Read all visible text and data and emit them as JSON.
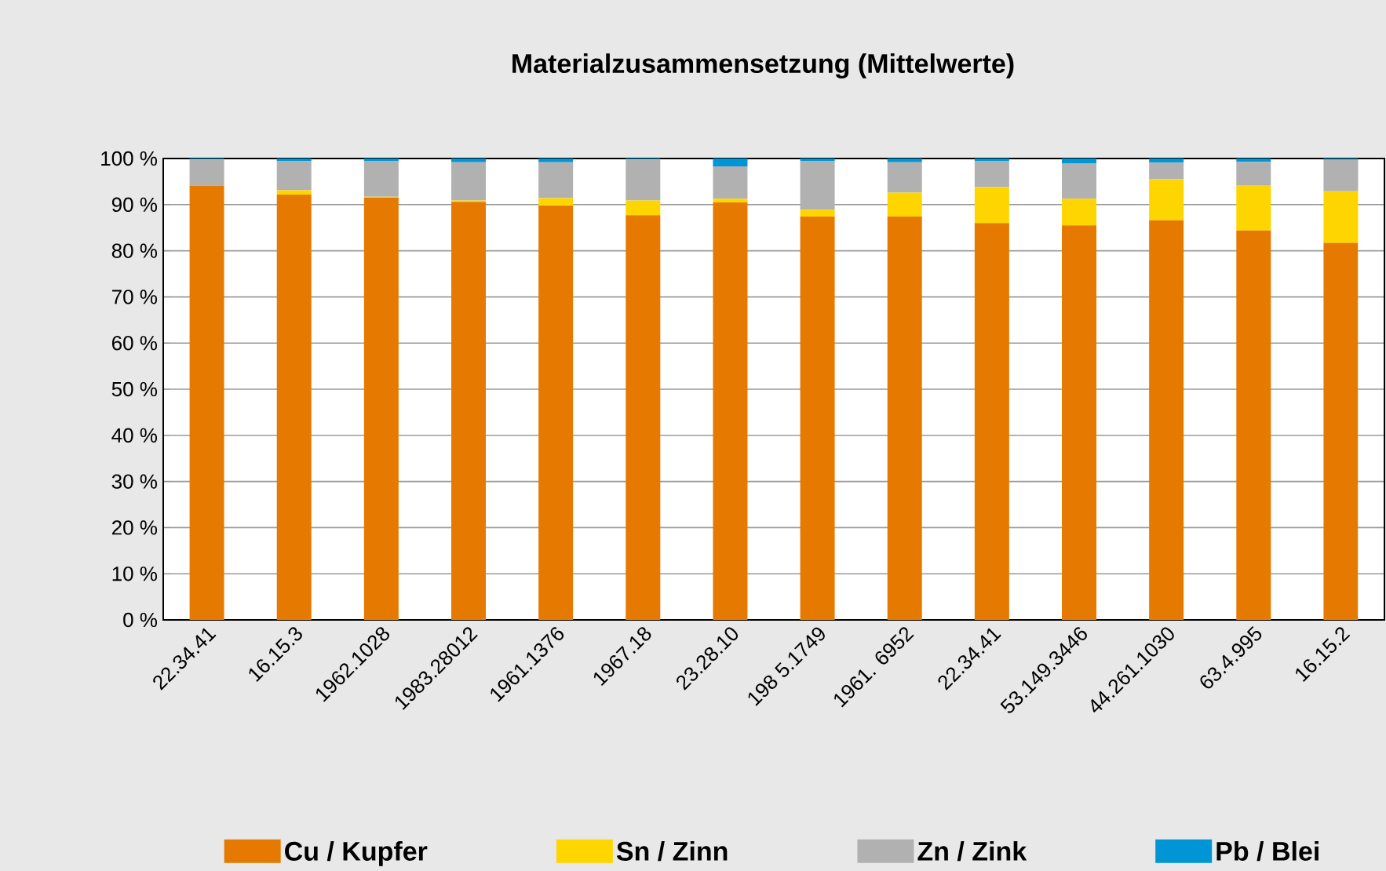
{
  "chart_data": {
    "type": "bar",
    "stacked": true,
    "title": "Materialzusammensetzung (Mittelwerte)",
    "categories": [
      "22.34.41",
      "16.15.3",
      "1962.1028",
      "1983.28012",
      "1961.1376",
      "1967.18",
      "23.28.10",
      "198 5.1749",
      "1961. 6952",
      "22.34.41",
      "53.149.3446",
      "44.261.1030",
      "63.4.995",
      "16.15.2"
    ],
    "series": [
      {
        "name": "Cu / Kupfer",
        "color": "#e67a00",
        "values": [
          94.1,
          92.2,
          91.5,
          90.6,
          89.8,
          87.7,
          90.5,
          87.4,
          87.4,
          86.0,
          85.5,
          86.6,
          84.4,
          81.7
        ]
      },
      {
        "name": "Sn / Zinn",
        "color": "#ffd500",
        "values": [
          0,
          0.9,
          0.2,
          0.3,
          1.6,
          3.2,
          0.8,
          1.5,
          5.2,
          7.8,
          5.8,
          8.9,
          9.8,
          11.2
        ]
      },
      {
        "name": "Zn / Zink",
        "color": "#b1b1b1",
        "values": [
          5.7,
          6.3,
          7.7,
          8.3,
          7.8,
          8.9,
          7.0,
          10.5,
          6.6,
          5.6,
          7.7,
          3.6,
          5.1,
          6.8
        ]
      },
      {
        "name": "Pb / Blei",
        "color": "#0096d6",
        "values": [
          0.2,
          0.6,
          0.6,
          0.8,
          0.8,
          0.2,
          1.7,
          0.6,
          0.8,
          0.6,
          1.0,
          0.9,
          0.7,
          0.3
        ]
      }
    ],
    "ylim": [
      0,
      100
    ],
    "yticks": [
      {
        "value": 0,
        "label": "0 %"
      },
      {
        "value": 10,
        "label": "10 %"
      },
      {
        "value": 20,
        "label": "20 %"
      },
      {
        "value": 30,
        "label": "30 %"
      },
      {
        "value": 40,
        "label": "40 %"
      },
      {
        "value": 50,
        "label": "50 %"
      },
      {
        "value": 60,
        "label": "60 %"
      },
      {
        "value": 70,
        "label": "70 %"
      },
      {
        "value": 80,
        "label": "80 %"
      },
      {
        "value": 90,
        "label": "90 %"
      },
      {
        "value": 100,
        "label": "100 %"
      }
    ],
    "grid": "y",
    "legend": "bottom"
  }
}
